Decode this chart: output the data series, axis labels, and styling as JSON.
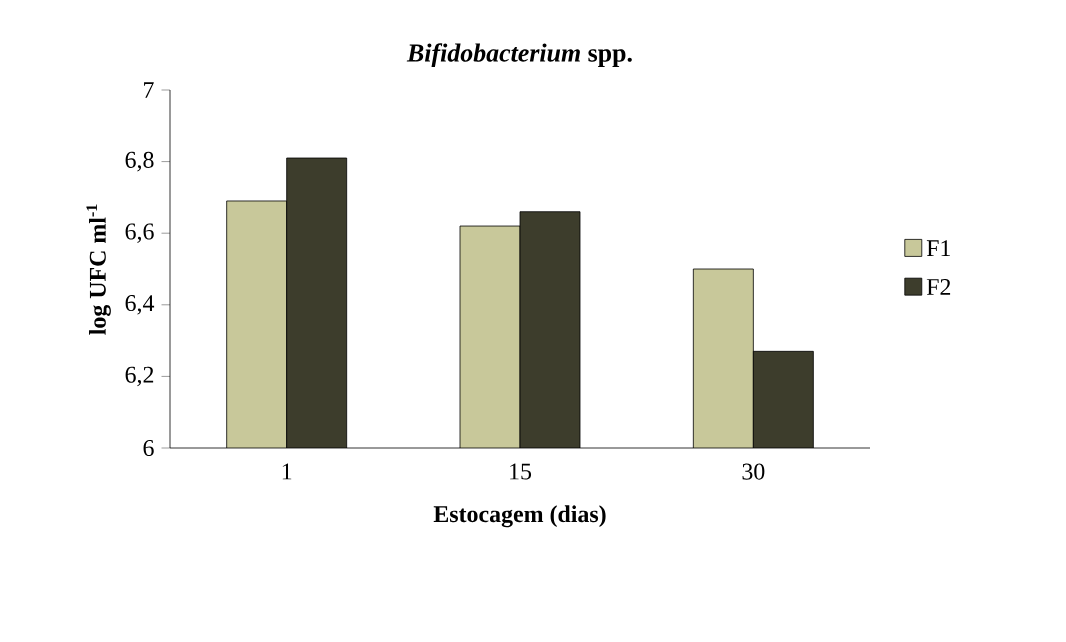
{
  "chart_data": {
    "type": "bar",
    "title": "*Bifidobacterium* spp.",
    "xlabel": "Estocagem (dias)",
    "ylabel": "log UFC ml$^{-1}$",
    "categories": [
      "1",
      "15",
      "30"
    ],
    "series": [
      {
        "name": "F1",
        "color": "#c8c89a",
        "values": [
          6.69,
          6.62,
          6.5
        ]
      },
      {
        "name": "F2",
        "color": "#3d3d2c",
        "values": [
          6.81,
          6.66,
          6.27
        ]
      }
    ],
    "ylim": [
      6,
      7
    ],
    "yticks": [
      6,
      {
        "value": 6.2,
        "label": "6,2"
      },
      {
        "value": 6.4,
        "label": "6,4"
      },
      {
        "value": 6.6,
        "label": "6,6"
      },
      {
        "value": 6.8,
        "label": "6,8"
      },
      7
    ],
    "grid": false,
    "legend": "right"
  }
}
